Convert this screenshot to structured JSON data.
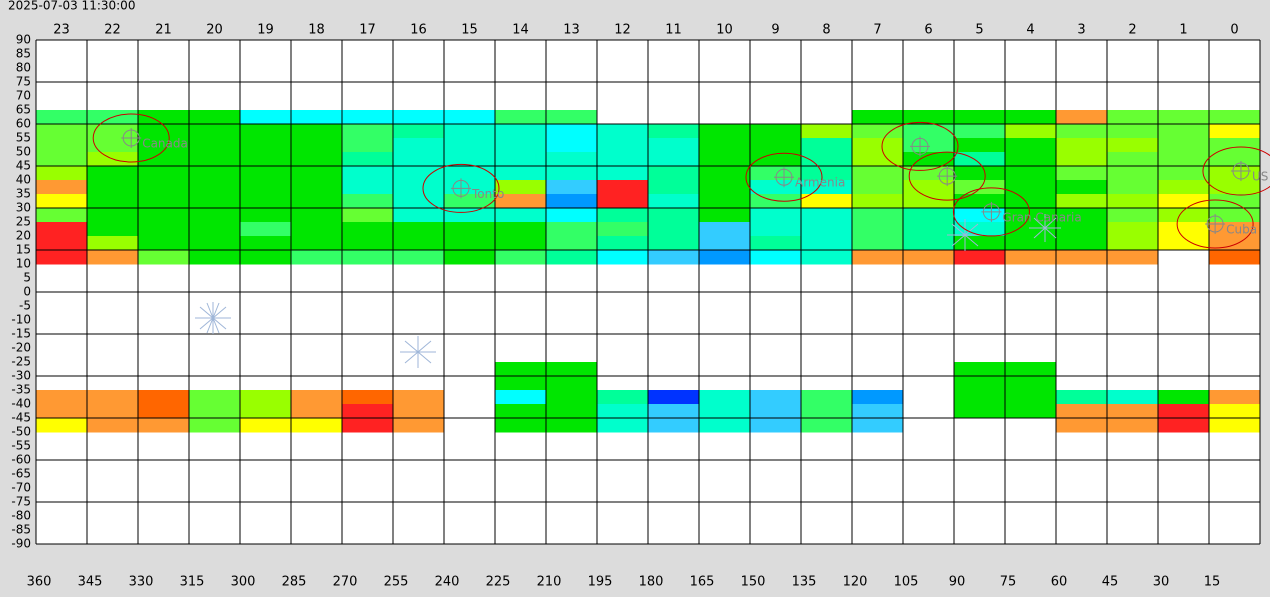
{
  "chart_data": {
    "type": "heatmap",
    "timestamp": "2025-07-03 11:30:00",
    "hours": [
      "23",
      "22",
      "21",
      "20",
      "19",
      "18",
      "17",
      "16",
      "15",
      "14",
      "13",
      "12",
      "11",
      "10",
      "9",
      "8",
      "7",
      "6",
      "5",
      "4",
      "3",
      "2",
      "1",
      "0"
    ],
    "xlim": [
      360,
      0
    ],
    "xticks": [
      360,
      345,
      330,
      315,
      300,
      285,
      270,
      255,
      240,
      225,
      210,
      195,
      180,
      165,
      150,
      135,
      120,
      105,
      90,
      75,
      60,
      45,
      30,
      15
    ],
    "ylim": [
      -90,
      90
    ],
    "yticks": [
      90,
      85,
      80,
      75,
      70,
      65,
      60,
      55,
      50,
      45,
      40,
      35,
      30,
      25,
      20,
      15,
      10,
      5,
      0,
      -5,
      -10,
      -15,
      -20,
      -25,
      -30,
      -35,
      -40,
      -45,
      -50,
      -55,
      -60,
      -65,
      -70,
      -75,
      -80,
      -85,
      -90
    ],
    "grid": true,
    "rows": [
      {
        "dec": [
          60,
          65
        ],
        "colors": [
          "#33ff66",
          "#33ff66",
          "#00e600",
          "#00e600",
          "#00ffff",
          "#00ffff",
          "#00ffff",
          "#00ffff",
          "#00ffff",
          "#33ff66",
          "#33ff66",
          null,
          null,
          null,
          null,
          null,
          "#00e600",
          "#00e600",
          "#00e600",
          "#00e600",
          "#ff9933",
          "#66ff33",
          "#66ff33",
          "#66ff33"
        ]
      },
      {
        "dec": [
          55,
          60
        ],
        "colors": [
          "#66ff33",
          "#66ff33",
          "#00e600",
          "#00e600",
          "#00e600",
          "#00e600",
          "#33ff66",
          "#00ff99",
          "#00ffcc",
          "#00ffcc",
          "#00ffff",
          "#00ffcc",
          "#00ff99",
          "#00e600",
          "#00e600",
          "#99ff00",
          "#66ff33",
          "#33ff66",
          "#33ff66",
          "#99ff00",
          "#66ff33",
          "#66ff33",
          "#66ff33",
          "#ffff00"
        ]
      },
      {
        "dec": [
          50,
          55
        ],
        "colors": [
          "#66ff33",
          "#66ff33",
          "#00e600",
          "#00e600",
          "#00e600",
          "#00e600",
          "#33ff66",
          "#00ffcc",
          "#00ffcc",
          "#00ffcc",
          "#00ffff",
          "#00ffcc",
          "#00ffcc",
          "#00e600",
          "#00e600",
          "#00ff99",
          "#99ff00",
          "#33ff66",
          "#00e600",
          "#00e600",
          "#99ff00",
          "#99ff00",
          "#66ff33",
          "#66ff33"
        ]
      },
      {
        "dec": [
          45,
          50
        ],
        "colors": [
          "#66ff33",
          "#99ff00",
          "#00e600",
          "#00e600",
          "#00e600",
          "#00e600",
          "#00ff99",
          "#00ffcc",
          "#00ffcc",
          "#00ffcc",
          "#00ffcc",
          "#00ffcc",
          "#00ffcc",
          "#00e600",
          "#00e600",
          "#00ff99",
          "#99ff00",
          "#00e600",
          "#00ff99",
          "#00e600",
          "#99ff00",
          "#66ff33",
          "#66ff33",
          "#66ff33"
        ]
      },
      {
        "dec": [
          40,
          45
        ],
        "colors": [
          "#99ff00",
          "#00e600",
          "#00e600",
          "#00e600",
          "#00e600",
          "#00e600",
          "#00ffcc",
          "#00ffcc",
          "#00ffcc",
          "#00ffcc",
          "#00ffcc",
          "#00ffcc",
          "#00ff99",
          "#00e600",
          "#33ff66",
          "#00ff99",
          "#66ff33",
          "#66ff33",
          "#00e600",
          "#00e600",
          "#66ff33",
          "#66ff33",
          "#66ff33",
          "#99ff00"
        ]
      },
      {
        "dec": [
          35,
          40
        ],
        "colors": [
          "#ff9933",
          "#00e600",
          "#00e600",
          "#00e600",
          "#00e600",
          "#00e600",
          "#00ffcc",
          "#00ffcc",
          "#00ffcc",
          "#99ff00",
          "#33ccff",
          "#ff2222",
          "#00ff99",
          "#00e600",
          "#00ffcc",
          "#00ffcc",
          "#66ff33",
          "#99ff00",
          "#66ff33",
          "#00e600",
          "#00e600",
          "#66ff33",
          "#99ff00",
          "#99ff00"
        ]
      },
      {
        "dec": [
          30,
          35
        ],
        "colors": [
          "#ffff00",
          "#00e600",
          "#00e600",
          "#00e600",
          "#00e600",
          "#00e600",
          "#33ff66",
          "#00ffcc",
          "#33ff66",
          "#ff9933",
          "#0099ff",
          "#ff2222",
          "#00ffcc",
          "#00e600",
          "#33ff66",
          "#ffff00",
          "#99ff00",
          "#99ff00",
          "#00e600",
          "#00e600",
          "#99ff00",
          "#99ff00",
          "#ffff00",
          "#66ff33"
        ]
      },
      {
        "dec": [
          25,
          30
        ],
        "colors": [
          "#66ff33",
          "#00e600",
          "#00e600",
          "#00e600",
          "#00e600",
          "#00e600",
          "#66ff33",
          "#00ffcc",
          "#00ffcc",
          "#00ffcc",
          "#00ffff",
          "#00ff99",
          "#00ff99",
          "#00e600",
          "#00ffcc",
          "#00ffcc",
          "#33ff66",
          "#00ff99",
          "#00ffff",
          "#00e600",
          "#00e600",
          "#66ff33",
          "#99ff00",
          "#66ff33"
        ]
      },
      {
        "dec": [
          20,
          25
        ],
        "colors": [
          "#ff2222",
          "#00e600",
          "#00e600",
          "#00e600",
          "#33ff66",
          "#00e600",
          "#00e600",
          "#00e600",
          "#00e600",
          "#00e600",
          "#33ff66",
          "#33ff66",
          "#00ff99",
          "#33ccff",
          "#00ffcc",
          "#00ffcc",
          "#33ff66",
          "#00ff99",
          "#00ffcc",
          "#00e600",
          "#00e600",
          "#99ff00",
          "#ffff00",
          "#ff9933"
        ]
      },
      {
        "dec": [
          15,
          20
        ],
        "colors": [
          "#ff2222",
          "#99ff00",
          "#00e600",
          "#00e600",
          "#00e600",
          "#00e600",
          "#00e600",
          "#00e600",
          "#00e600",
          "#00e600",
          "#33ff66",
          "#00ff99",
          "#00ff99",
          "#33ccff",
          "#00ff99",
          "#00ffcc",
          "#33ff66",
          "#00ff99",
          "#00e600",
          "#00e600",
          "#00e600",
          "#99ff00",
          "#ffff00",
          "#ff9933"
        ]
      },
      {
        "dec": [
          10,
          15
        ],
        "colors": [
          "#ff2222",
          "#ff9933",
          "#66ff33",
          "#00e600",
          "#00e600",
          "#33ff66",
          "#33ff66",
          "#33ff66",
          "#00e600",
          "#33ff66",
          "#00ff99",
          "#00ffff",
          "#33ccff",
          "#0099ff",
          "#00ffff",
          "#00ffcc",
          "#ff9933",
          "#ff9933",
          "#ff2222",
          "#ff9933",
          "#ff9933",
          "#ff9933",
          null,
          "#ff6600"
        ]
      },
      {
        "dec": [
          -30,
          -25
        ],
        "colors": [
          null,
          null,
          null,
          null,
          null,
          null,
          null,
          null,
          null,
          "#00e600",
          "#00e600",
          null,
          null,
          null,
          null,
          null,
          null,
          null,
          "#00e600",
          "#00e600",
          null,
          null,
          null,
          null
        ]
      },
      {
        "dec": [
          -35,
          -30
        ],
        "colors": [
          null,
          null,
          null,
          null,
          null,
          null,
          null,
          null,
          null,
          "#00e600",
          "#00e600",
          null,
          null,
          null,
          null,
          null,
          null,
          null,
          "#00e600",
          "#00e600",
          null,
          null,
          null,
          null
        ]
      },
      {
        "dec": [
          -40,
          -35
        ],
        "colors": [
          "#ff9933",
          "#ff9933",
          "#ff6600",
          "#66ff33",
          "#99ff00",
          "#ff9933",
          "#ff6600",
          "#ff9933",
          null,
          "#00ffff",
          "#00e600",
          "#00ff99",
          "#0033ff",
          "#00ffcc",
          "#33ccff",
          "#33ff66",
          "#0099ff",
          null,
          "#00e600",
          "#00e600",
          "#00ff99",
          "#00ffcc",
          "#00e600",
          "#ff9933"
        ]
      },
      {
        "dec": [
          -45,
          -40
        ],
        "colors": [
          "#ff9933",
          "#ff9933",
          "#ff6600",
          "#66ff33",
          "#99ff00",
          "#ff9933",
          "#ff2222",
          "#ff9933",
          null,
          "#00e600",
          "#00e600",
          "#00ffcc",
          "#33ccff",
          "#00ffcc",
          "#33ccff",
          "#33ff66",
          "#33ccff",
          null,
          "#00e600",
          "#00e600",
          "#ff9933",
          "#ff9933",
          "#ff2222",
          "#ffff00"
        ]
      },
      {
        "dec": [
          -50,
          -45
        ],
        "colors": [
          "#ffff00",
          "#ff9933",
          "#ff9933",
          "#66ff33",
          "#ffff00",
          "#ffff00",
          "#ff2222",
          "#ff9933",
          null,
          "#00e600",
          "#00e600",
          "#00ffcc",
          "#33ccff",
          "#00ffcc",
          "#33ccff",
          "#33ff66",
          "#33ccff",
          null,
          null,
          null,
          "#ff9933",
          "#ff9933",
          "#ff2222",
          "#ffff00"
        ]
      }
    ],
    "markers": [
      {
        "name": "Canada",
        "ra": 332,
        "dec": 55
      },
      {
        "name": "Tonto",
        "ra": 235,
        "dec": 37
      },
      {
        "name": "Armenia",
        "ra": 140,
        "dec": 41
      },
      {
        "name": "Gran Canaria",
        "ra": 79,
        "dec": 28.6
      },
      {
        "name": "US",
        "ra": 5.6,
        "dec": 43.2
      },
      {
        "name": "Cuba",
        "ra": 13.2,
        "dec": 24.3
      },
      {
        "ra": 100,
        "dec": 52
      },
      {
        "ra": 92,
        "dec": 41.4
      }
    ]
  }
}
